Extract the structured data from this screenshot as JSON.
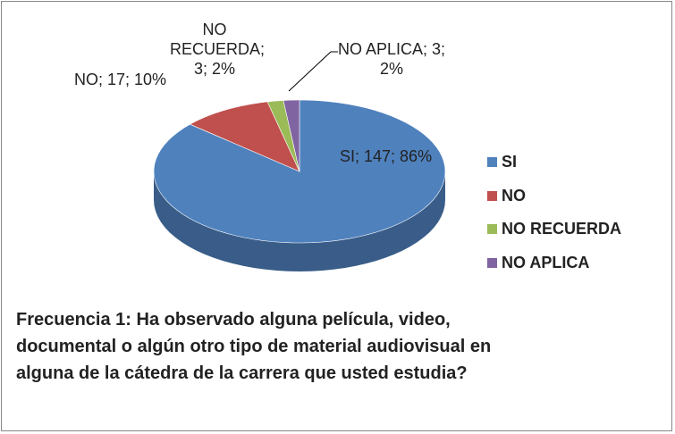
{
  "chart_data": {
    "type": "pie",
    "title": "Frecuencia 1: Ha observado alguna película, video, documental o algún otro tipo de material audiovisual en alguna de la cátedra de la carrera que usted estudia?",
    "categories": [
      "SI",
      "NO",
      "NO RECUERDA",
      "NO APLICA"
    ],
    "values": [
      147,
      17,
      3,
      3
    ],
    "value_labels": [
      "SI; 147; 86%",
      "NO; 17; 10%",
      "NO RECUERDA; 3; 2%",
      "NO APLICA; 3; 2%"
    ],
    "colors": [
      "#4f81bd",
      "#c0504d",
      "#9bbb59",
      "#8064a2"
    ],
    "legend": "right"
  }
}
